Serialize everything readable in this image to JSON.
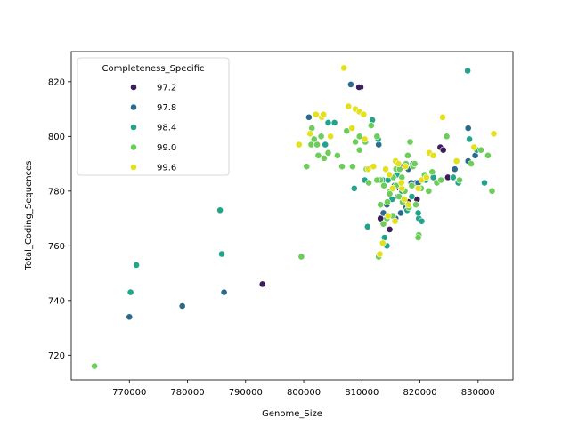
{
  "chart_data": {
    "type": "scatter",
    "title": "",
    "xlabel": "Genome_Size",
    "ylabel": "Total_Coding_Sequences",
    "xlim": [
      760000,
      836000
    ],
    "ylim": [
      711,
      831
    ],
    "xticks": [
      770000,
      780000,
      790000,
      800000,
      810000,
      820000,
      830000
    ],
    "yticks": [
      720,
      740,
      760,
      780,
      800,
      820
    ],
    "grid": false,
    "legend": {
      "title": "Completeness_Specific",
      "placement": "top-left",
      "entries": [
        {
          "label": "97.2",
          "color": "#3b1f59"
        },
        {
          "label": "97.8",
          "color": "#2c6a8c"
        },
        {
          "label": "98.4",
          "color": "#22a48a"
        },
        {
          "label": "99.0",
          "color": "#6ccd5a"
        },
        {
          "label": "99.6",
          "color": "#e3e01c"
        }
      ]
    },
    "series": [
      {
        "name": "97.2",
        "color": "#3b1f59",
        "points": [
          [
            792900,
            746
          ],
          [
            809800,
            818
          ],
          [
            809500,
            818
          ],
          [
            813200,
            770
          ],
          [
            816500,
            781
          ],
          [
            818000,
            776
          ],
          [
            819500,
            777
          ],
          [
            823500,
            796
          ],
          [
            824000,
            795
          ],
          [
            824800,
            785
          ],
          [
            814800,
            766
          ],
          [
            817200,
            789
          ]
        ]
      },
      {
        "name": "97.8",
        "color": "#2c6a8c",
        "points": [
          [
            770000,
            734
          ],
          [
            779100,
            738
          ],
          [
            786300,
            743
          ],
          [
            785900,
            757
          ],
          [
            800900,
            807
          ],
          [
            808100,
            819
          ],
          [
            812900,
            797
          ],
          [
            815600,
            782
          ],
          [
            816200,
            778
          ],
          [
            814300,
            775
          ],
          [
            818800,
            790
          ],
          [
            818000,
            788
          ],
          [
            816700,
            772
          ],
          [
            815800,
            770
          ],
          [
            817600,
            774
          ],
          [
            819300,
            783
          ],
          [
            819700,
            783
          ],
          [
            826000,
            788
          ],
          [
            828300,
            803
          ],
          [
            828300,
            791
          ],
          [
            829500,
            793
          ],
          [
            813700,
            772
          ],
          [
            818500,
            783
          ],
          [
            816800,
            780
          ]
        ]
      },
      {
        "name": "98.4",
        "color": "#22a48a",
        "points": [
          [
            770200,
            743
          ],
          [
            771200,
            753
          ],
          [
            785900,
            757
          ],
          [
            785600,
            773
          ],
          [
            803700,
            797
          ],
          [
            805300,
            805
          ],
          [
            804200,
            805
          ],
          [
            808700,
            781
          ],
          [
            810500,
            784
          ],
          [
            811000,
            767
          ],
          [
            811800,
            806
          ],
          [
            812800,
            799
          ],
          [
            813600,
            784
          ],
          [
            814500,
            784
          ],
          [
            815200,
            777
          ],
          [
            816000,
            786
          ],
          [
            816900,
            780
          ],
          [
            818600,
            778
          ],
          [
            819800,
            770
          ],
          [
            821000,
            784
          ],
          [
            822300,
            785
          ],
          [
            825700,
            785
          ],
          [
            826600,
            783
          ],
          [
            828200,
            824
          ],
          [
            828500,
            799
          ],
          [
            829800,
            795
          ],
          [
            831100,
            783
          ],
          [
            813900,
            763
          ],
          [
            817800,
            773
          ],
          [
            814300,
            760
          ],
          [
            819700,
            772
          ],
          [
            820300,
            769
          ]
        ]
      },
      {
        "name": "99.0",
        "color": "#6ccd5a",
        "points": [
          [
            764000,
            716
          ],
          [
            799600,
            756
          ],
          [
            800500,
            789
          ],
          [
            801300,
            797
          ],
          [
            801800,
            799
          ],
          [
            801400,
            803
          ],
          [
            802300,
            797
          ],
          [
            803000,
            800
          ],
          [
            802500,
            793
          ],
          [
            803500,
            792
          ],
          [
            804200,
            794
          ],
          [
            805800,
            793
          ],
          [
            806600,
            789
          ],
          [
            807400,
            802
          ],
          [
            808400,
            789
          ],
          [
            808900,
            798
          ],
          [
            809600,
            800
          ],
          [
            810600,
            798
          ],
          [
            811600,
            804
          ],
          [
            812600,
            800
          ],
          [
            813200,
            784
          ],
          [
            813800,
            782
          ],
          [
            814400,
            776
          ],
          [
            814900,
            780
          ],
          [
            815400,
            785
          ],
          [
            815900,
            788
          ],
          [
            816400,
            778
          ],
          [
            816900,
            785
          ],
          [
            817400,
            780
          ],
          [
            817900,
            793
          ],
          [
            818300,
            798
          ],
          [
            818800,
            789
          ],
          [
            819300,
            775
          ],
          [
            819800,
            764
          ],
          [
            820200,
            781
          ],
          [
            820800,
            786
          ],
          [
            821500,
            780
          ],
          [
            822100,
            787
          ],
          [
            822900,
            783
          ],
          [
            823600,
            784
          ],
          [
            824600,
            800
          ],
          [
            826800,
            784
          ],
          [
            828800,
            790
          ],
          [
            830500,
            795
          ],
          [
            831700,
            793
          ],
          [
            832400,
            780
          ],
          [
            812600,
            784
          ],
          [
            813200,
            775
          ],
          [
            813700,
            768
          ],
          [
            814300,
            770
          ],
          [
            814800,
            779
          ],
          [
            815300,
            771
          ],
          [
            815900,
            782
          ],
          [
            816500,
            788
          ],
          [
            817000,
            776
          ],
          [
            817600,
            790
          ],
          [
            818100,
            774
          ],
          [
            818600,
            782
          ],
          [
            819100,
            790
          ],
          [
            819700,
            763
          ],
          [
            809600,
            795
          ],
          [
            810800,
            788
          ],
          [
            811200,
            783
          ],
          [
            812900,
            756
          ]
        ]
      },
      {
        "name": "99.6",
        "color": "#e3e01c",
        "points": [
          [
            799200,
            797
          ],
          [
            801100,
            801
          ],
          [
            802100,
            808
          ],
          [
            803100,
            807
          ],
          [
            803400,
            808
          ],
          [
            804600,
            800
          ],
          [
            806900,
            825
          ],
          [
            807700,
            811
          ],
          [
            808300,
            803
          ],
          [
            808900,
            810
          ],
          [
            809600,
            809
          ],
          [
            810300,
            808
          ],
          [
            810500,
            799
          ],
          [
            811100,
            788
          ],
          [
            812000,
            789
          ],
          [
            813100,
            757
          ],
          [
            814100,
            788
          ],
          [
            814700,
            786
          ],
          [
            815300,
            781
          ],
          [
            815800,
            791
          ],
          [
            816300,
            790
          ],
          [
            816900,
            781
          ],
          [
            817500,
            789
          ],
          [
            818000,
            775
          ],
          [
            819700,
            781
          ],
          [
            820300,
            784
          ],
          [
            821100,
            785
          ],
          [
            821600,
            794
          ],
          [
            822300,
            793
          ],
          [
            823900,
            807
          ],
          [
            826300,
            791
          ],
          [
            829300,
            796
          ],
          [
            832700,
            801
          ],
          [
            813600,
            761
          ],
          [
            814500,
            771
          ],
          [
            815700,
            769
          ],
          [
            816800,
            783
          ],
          [
            817300,
            777
          ]
        ]
      }
    ]
  }
}
